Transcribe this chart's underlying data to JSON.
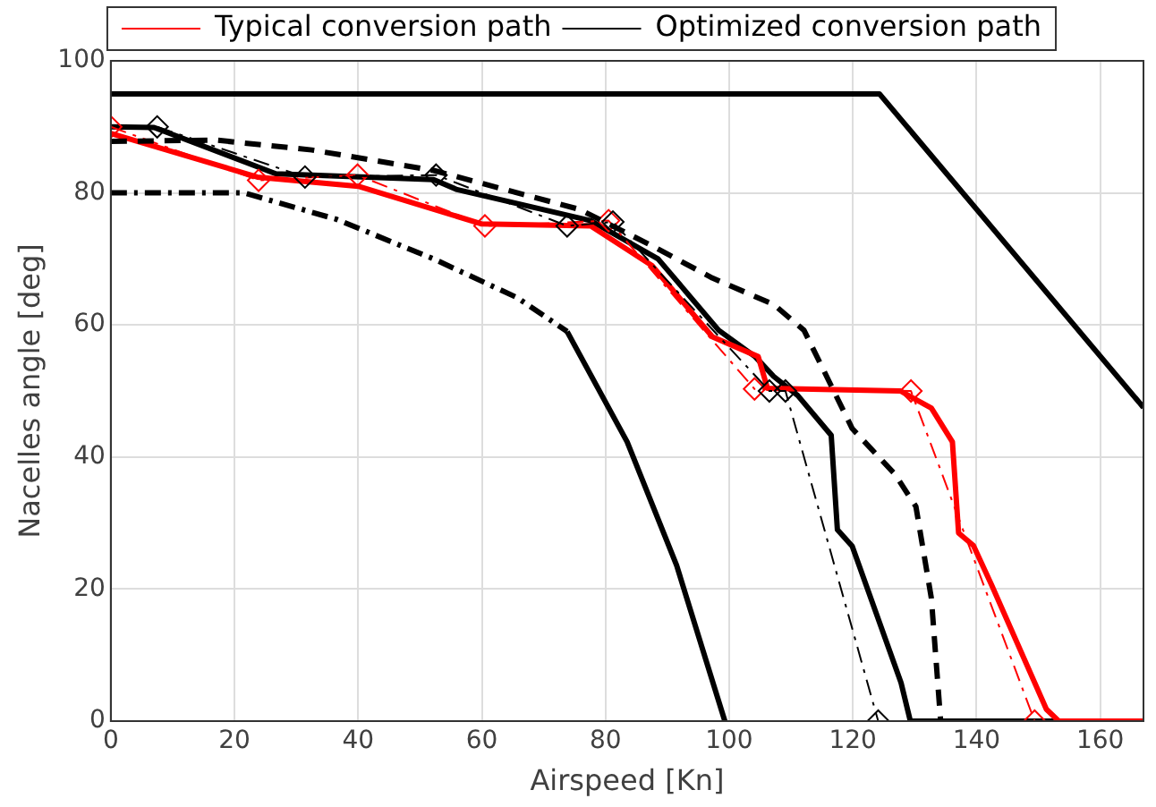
{
  "chart_data": {
    "type": "line",
    "xlabel": "Airspeed [Kn]",
    "ylabel": "Nacelles angle [deg]",
    "xlim": [
      0,
      167
    ],
    "xticks": [
      0,
      20,
      40,
      60,
      80,
      100,
      120,
      140,
      160
    ],
    "ylim": [
      0,
      100
    ],
    "yticks": [
      0,
      20,
      40,
      60,
      80,
      100
    ],
    "grid": true,
    "legend": "top",
    "marker": "none",
    "line_style": "solid",
    "series": [
      {
        "color": "#000000",
        "x": [
          0,
          124.3,
          167
        ],
        "values": [
          95,
          95,
          47.5
        ]
      },
      {
        "color": "#000000",
        "line_style": "dashed",
        "x": [
          0,
          17,
          32.5,
          52.2,
          75.8,
          87.5,
          97.3,
          107.2,
          112.1,
          119.9,
          126.8,
          130.2,
          132.7,
          134.2
        ],
        "values": [
          87.8,
          88,
          86.5,
          83.4,
          77.5,
          72,
          67.1,
          63.1,
          59.2,
          44.3,
          37.4,
          32.5,
          18.6,
          0
        ]
      },
      {
        "color": "#000000",
        "line_style": "dashdot",
        "x": [
          0,
          21.6,
          36.5,
          52.2,
          65.8,
          73.8
        ],
        "values": [
          80,
          80,
          76,
          70,
          64.1,
          59
        ]
      },
      {
        "color": "#000000",
        "x": [
          73.8,
          83.5,
          91.5,
          99.3
        ],
        "values": [
          59,
          42.3,
          23.6,
          0
        ]
      },
      {
        "color": "#000000",
        "line_style": "dashdot",
        "marker": "diamond",
        "x": [
          7.5,
          31.4,
          52.6,
          73.8,
          81.2,
          106.5,
          109.1,
          124.1
        ],
        "values": [
          90,
          82.4,
          82.7,
          75,
          75.6,
          50,
          50,
          0
        ]
      },
      {
        "color": "#ff0000",
        "line_style": "dashdot",
        "marker": "diamond",
        "x": [
          0,
          23.9,
          39.9,
          60.5,
          80.5,
          104.1,
          129.4,
          149.4
        ],
        "values": [
          90,
          81.9,
          82.7,
          75,
          75.8,
          50.3,
          50,
          0
        ]
      },
      {
        "name": "Typical conversion path",
        "color": "#ff0000",
        "x": [
          0,
          23.7,
          40,
          60,
          77.6,
          87.5,
          97.3,
          104.7,
          106.2,
          127.7,
          132.7,
          136.1,
          137.1,
          139.5,
          142.4,
          151.3,
          153.3,
          167
        ],
        "values": [
          89,
          82.4,
          81,
          75.3,
          75,
          69,
          58.2,
          55.2,
          50.4,
          50,
          47.4,
          42.3,
          28.5,
          26.6,
          20.7,
          1.8,
          0,
          0
        ]
      },
      {
        "name": "Optimized conversion path",
        "color": "#000000",
        "x": [
          0,
          7,
          26.7,
          52.2,
          56,
          77.6,
          88.5,
          98.3,
          104.2,
          107.2,
          111.1,
          116.5,
          117.5,
          119.9,
          127.8,
          129.3,
          167
        ],
        "values": [
          90,
          89.9,
          82.9,
          82,
          80.5,
          75.8,
          70,
          59.2,
          55.2,
          52.2,
          49.3,
          43.3,
          29,
          26.5,
          5.8,
          0,
          0
        ]
      }
    ]
  }
}
